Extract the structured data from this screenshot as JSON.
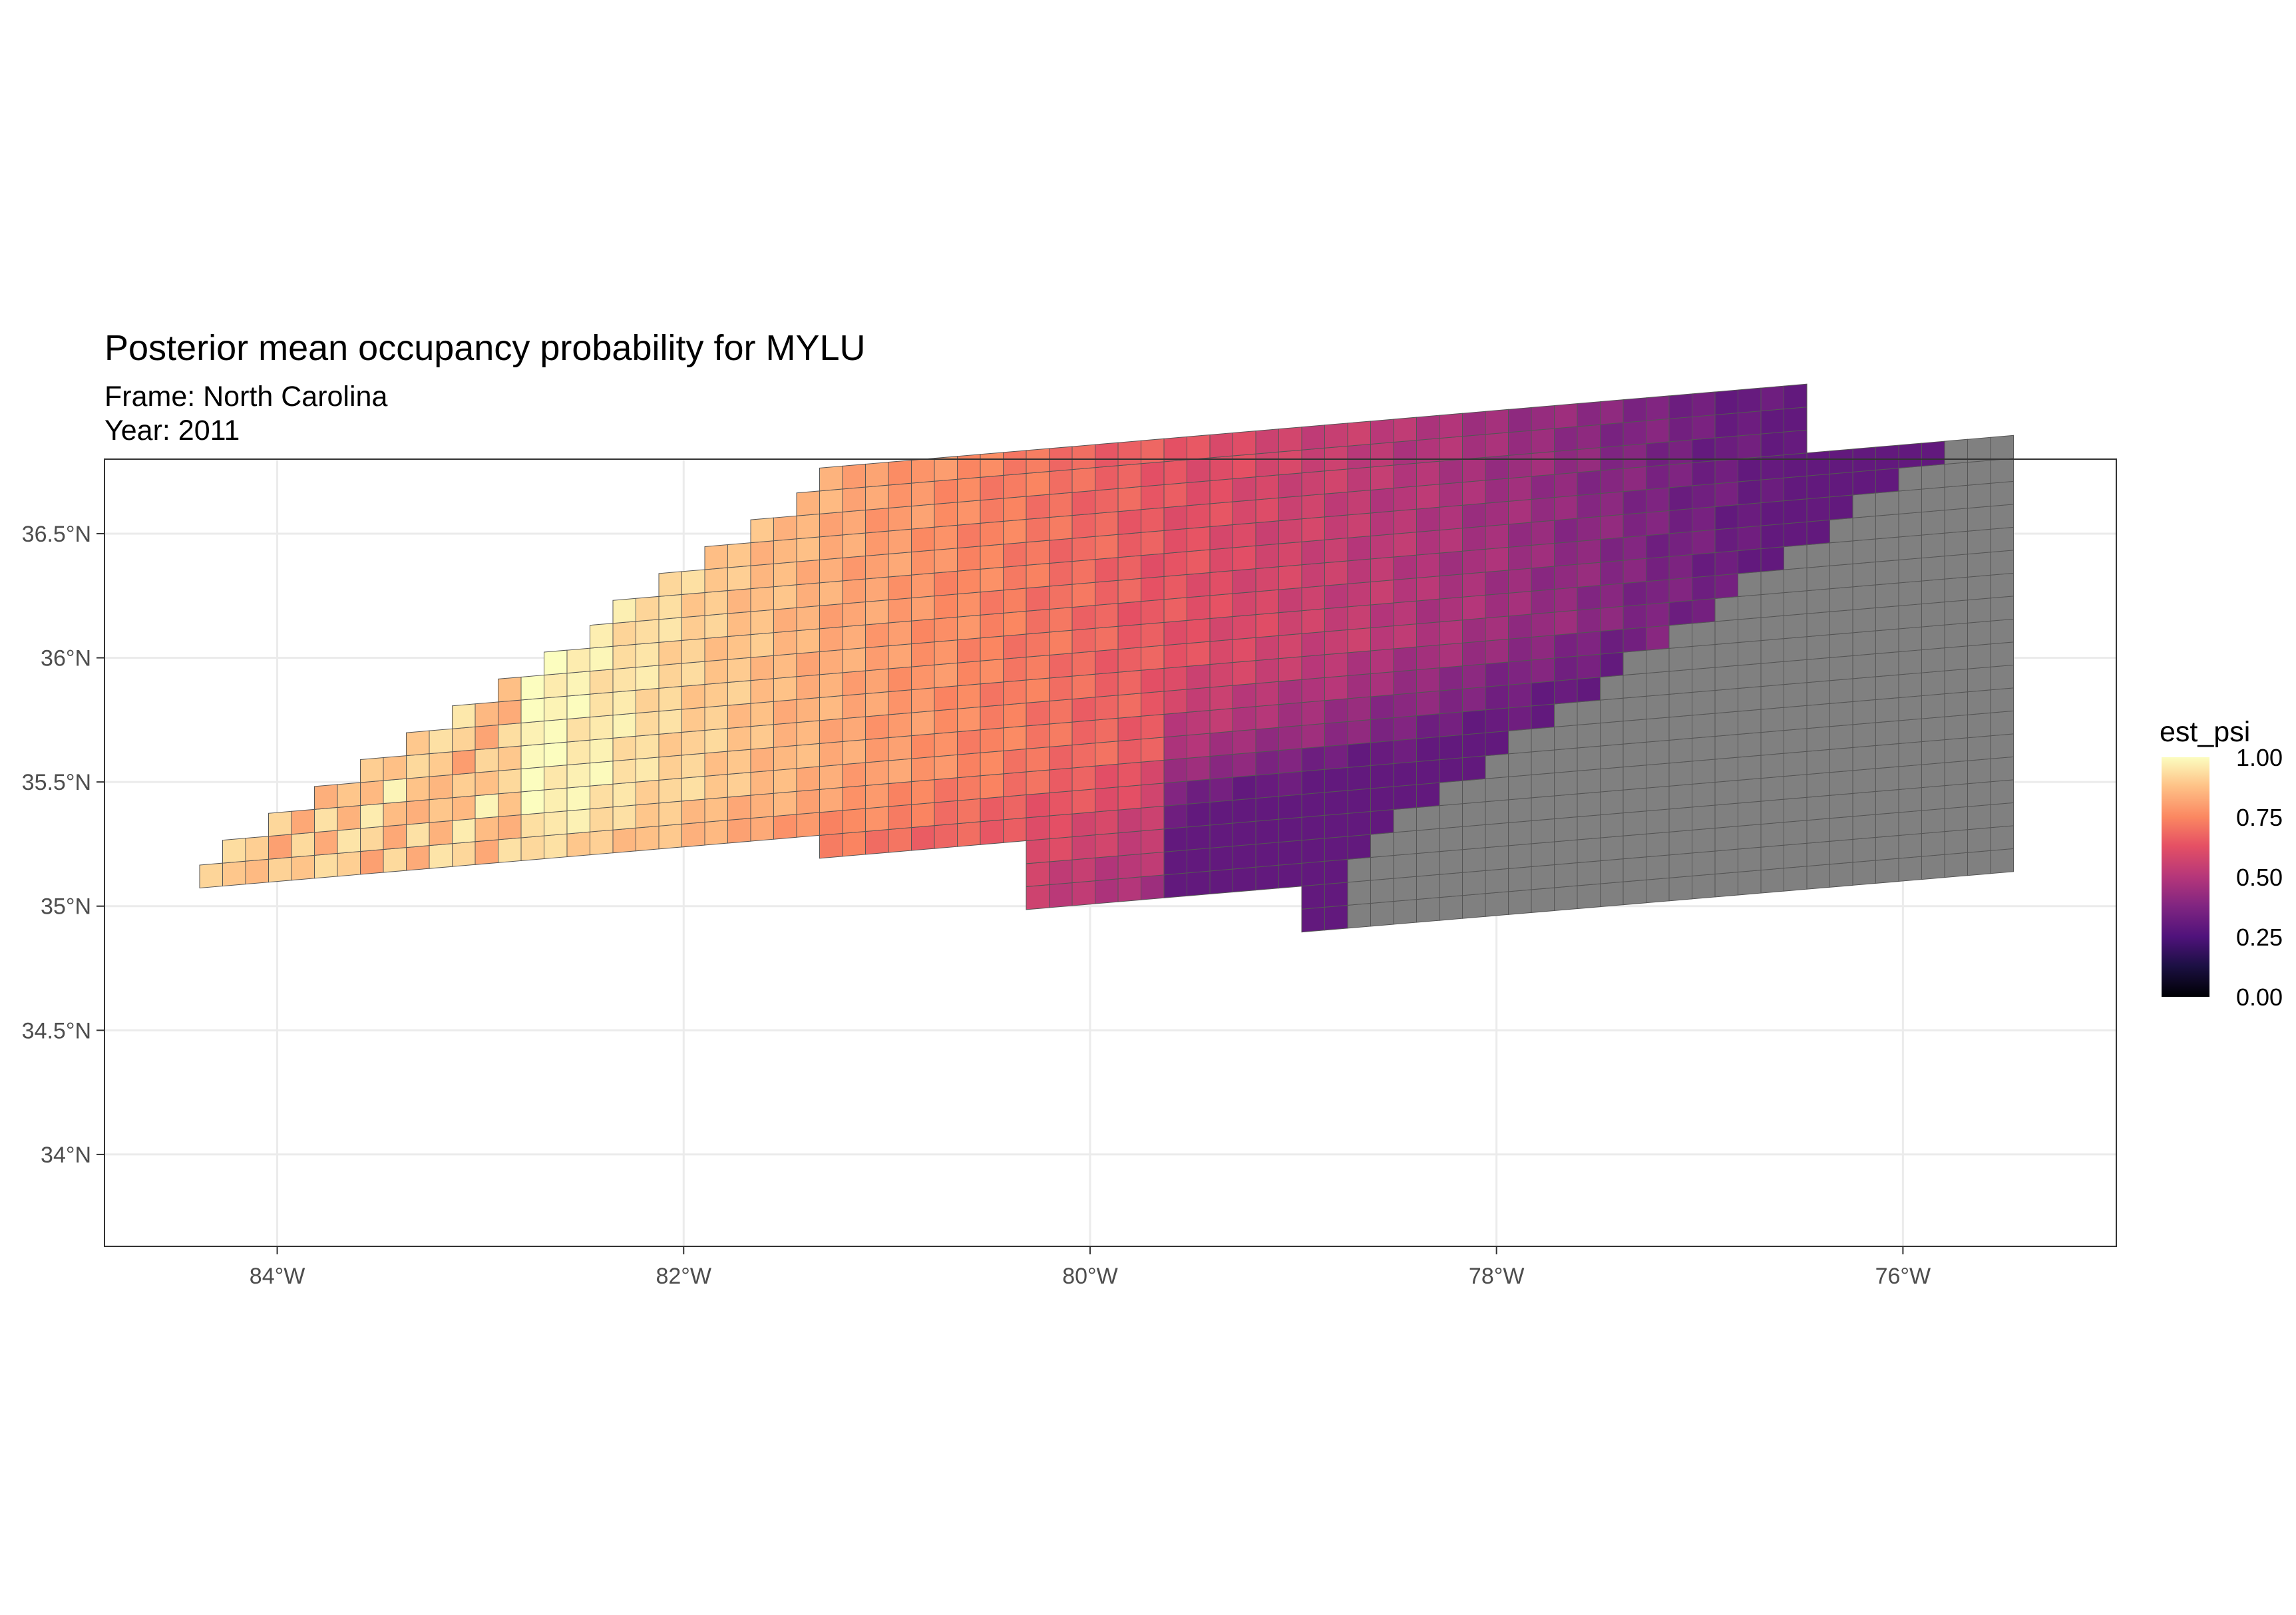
{
  "title": "Posterior mean occupancy probability for MYLU",
  "subtitle_frame": "Frame: North Carolina",
  "subtitle_year": "Year: 2011",
  "colors": {
    "panel_border": "#333333",
    "grid": "#ebebeb",
    "cell_border": "#555555",
    "missing": "#808080",
    "axis_text": "#4d4d4d"
  },
  "chart_data": {
    "type": "heatmap",
    "x_ticks": [
      "84°W",
      "82°W",
      "80°W",
      "78°W",
      "76°W"
    ],
    "x_tick_values": [
      -84,
      -82,
      -80,
      -78,
      -76
    ],
    "y_ticks": [
      "34°N",
      "34.5°N",
      "35°N",
      "35.5°N",
      "36°N",
      "36.5°N"
    ],
    "y_tick_values": [
      34,
      34.5,
      35,
      35.5,
      36,
      36.5
    ],
    "xlim": [
      -84.85,
      -74.95
    ],
    "ylim": [
      33.63,
      36.8
    ],
    "grid": true,
    "legend": {
      "title": "est_psi",
      "placement": "right",
      "ticks": [
        "1.00",
        "0.75",
        "0.50",
        "0.25",
        "0.00"
      ],
      "tick_values": [
        1.0,
        0.75,
        0.5,
        0.25,
        0.0
      ],
      "palette": "magma",
      "range": [
        0,
        1
      ]
    },
    "missing_color": "#808080",
    "estimated_region_lon_range": [
      -84.4,
      -75.75
    ],
    "unestimated_region_lon_range": [
      -79.9,
      -75.4
    ]
  }
}
